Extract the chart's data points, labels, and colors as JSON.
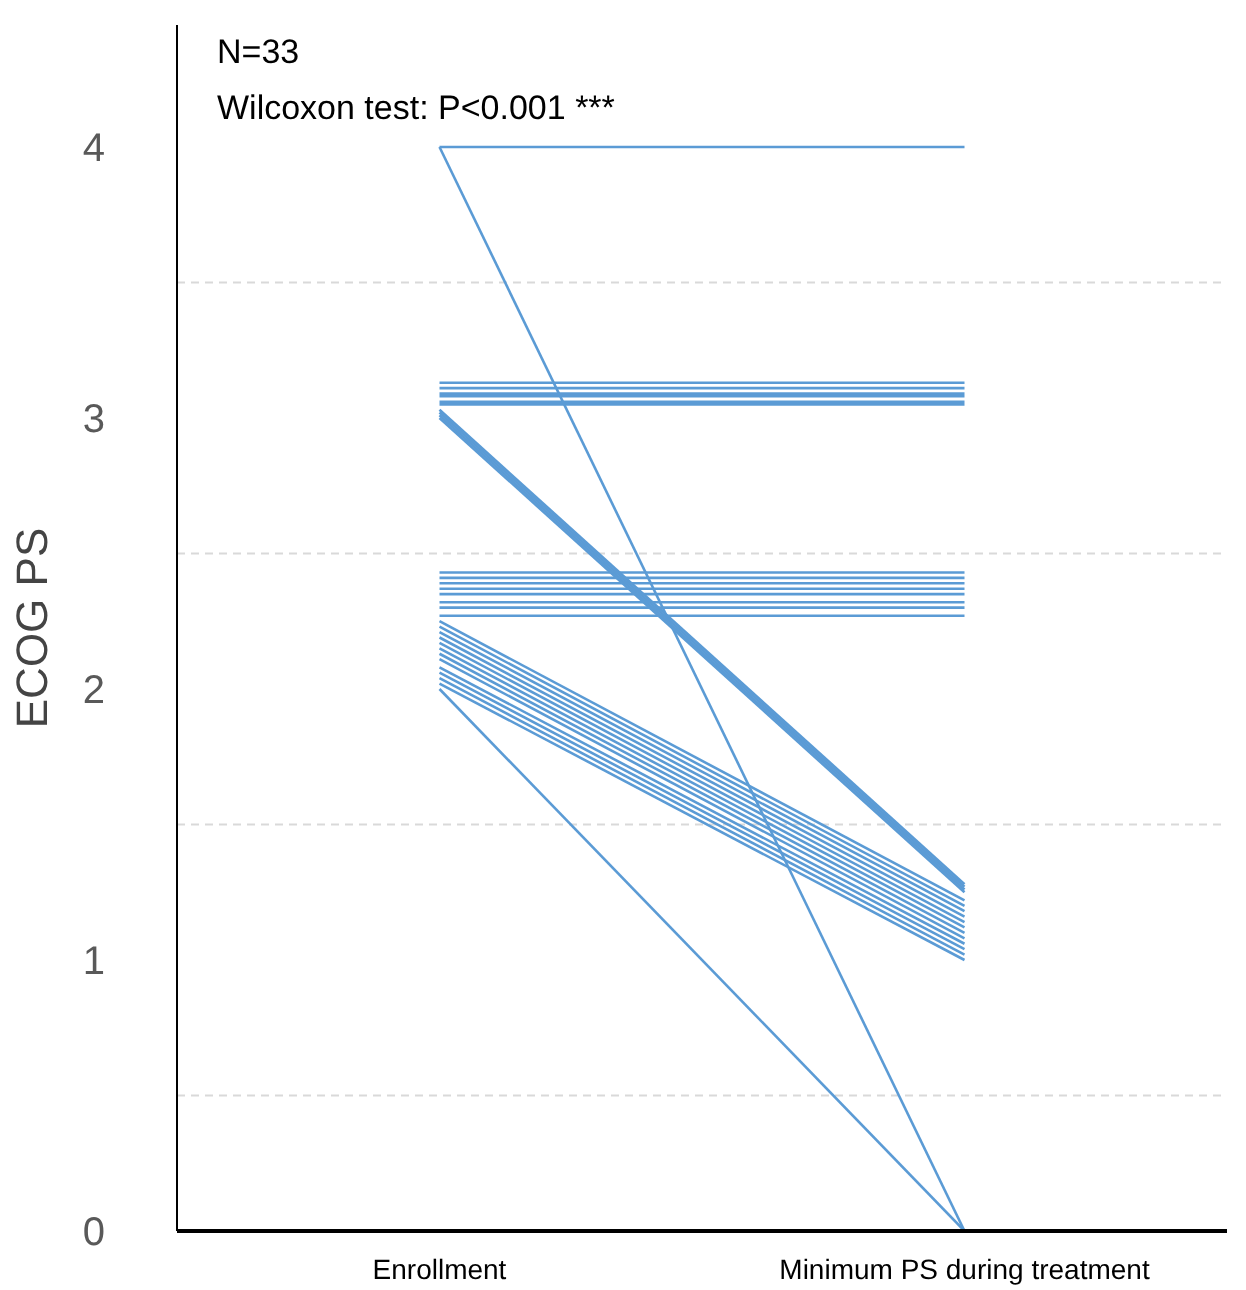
{
  "chart_data": {
    "type": "line",
    "ylabel": "ECOG PS",
    "annotations": [
      "N=33",
      "Wilcoxon test: P<0.001 ***"
    ],
    "categories": [
      "Enrollment",
      "Minimum PS during treatment"
    ],
    "ylim": [
      0,
      4.45
    ],
    "yticks": [
      0,
      1,
      2,
      3,
      4
    ],
    "grid": false,
    "ref_lines": [
      {
        "axis": "y",
        "value": 0.5,
        "label": null,
        "color": "#d9d9d9",
        "line_style": "dashed"
      },
      {
        "axis": "y",
        "value": 1.5,
        "label": null,
        "color": "#d9d9d9",
        "line_style": "dashed"
      },
      {
        "axis": "y",
        "value": 2.5,
        "label": null,
        "color": "#d9d9d9",
        "line_style": "dashed"
      },
      {
        "axis": "y",
        "value": 3.5,
        "label": null,
        "color": "#d9d9d9",
        "line_style": "dashed"
      }
    ],
    "series": [
      {
        "color": "#5b9bd5",
        "values": [
          4,
          4
        ]
      },
      {
        "color": "#5b9bd5",
        "values": [
          4,
          0
        ]
      },
      {
        "color": "#5b9bd5",
        "values": [
          3.13,
          3.13
        ]
      },
      {
        "color": "#5b9bd5",
        "values": [
          3.11,
          3.11
        ]
      },
      {
        "color": "#5b9bd5",
        "values": [
          3.09,
          3.09
        ]
      },
      {
        "color": "#5b9bd5",
        "values": [
          3.08,
          3.08
        ]
      },
      {
        "color": "#5b9bd5",
        "values": [
          3.06,
          3.06
        ]
      },
      {
        "color": "#5b9bd5",
        "values": [
          3.05,
          3.05
        ]
      },
      {
        "color": "#5b9bd5",
        "values": [
          3.03,
          1.28
        ]
      },
      {
        "color": "#5b9bd5",
        "values": [
          3.02,
          1.27
        ]
      },
      {
        "color": "#5b9bd5",
        "values": [
          3.01,
          1.26
        ]
      },
      {
        "color": "#5b9bd5",
        "values": [
          3.0,
          1.25
        ]
      },
      {
        "color": "#5b9bd5",
        "values": [
          2.43,
          2.43
        ]
      },
      {
        "color": "#5b9bd5",
        "values": [
          2.41,
          2.41
        ]
      },
      {
        "color": "#5b9bd5",
        "values": [
          2.39,
          2.39
        ]
      },
      {
        "color": "#5b9bd5",
        "values": [
          2.37,
          2.37
        ]
      },
      {
        "color": "#5b9bd5",
        "values": [
          2.35,
          2.35
        ]
      },
      {
        "color": "#5b9bd5",
        "values": [
          2.32,
          2.32
        ]
      },
      {
        "color": "#5b9bd5",
        "values": [
          2.3,
          2.3
        ]
      },
      {
        "color": "#5b9bd5",
        "values": [
          2.27,
          2.27
        ]
      },
      {
        "color": "#5b9bd5",
        "values": [
          2.25,
          1.22
        ]
      },
      {
        "color": "#5b9bd5",
        "values": [
          2.23,
          1.2
        ]
      },
      {
        "color": "#5b9bd5",
        "values": [
          2.21,
          1.18
        ]
      },
      {
        "color": "#5b9bd5",
        "values": [
          2.19,
          1.16
        ]
      },
      {
        "color": "#5b9bd5",
        "values": [
          2.17,
          1.14
        ]
      },
      {
        "color": "#5b9bd5",
        "values": [
          2.15,
          1.12
        ]
      },
      {
        "color": "#5b9bd5",
        "values": [
          2.13,
          1.1
        ]
      },
      {
        "color": "#5b9bd5",
        "values": [
          2.11,
          1.08
        ]
      },
      {
        "color": "#5b9bd5",
        "values": [
          2.08,
          1.06
        ]
      },
      {
        "color": "#5b9bd5",
        "values": [
          2.06,
          1.04
        ]
      },
      {
        "color": "#5b9bd5",
        "values": [
          2.04,
          1.02
        ]
      },
      {
        "color": "#5b9bd5",
        "values": [
          2.02,
          1.0
        ]
      },
      {
        "color": "#5b9bd5",
        "values": [
          2.0,
          0
        ]
      }
    ]
  }
}
